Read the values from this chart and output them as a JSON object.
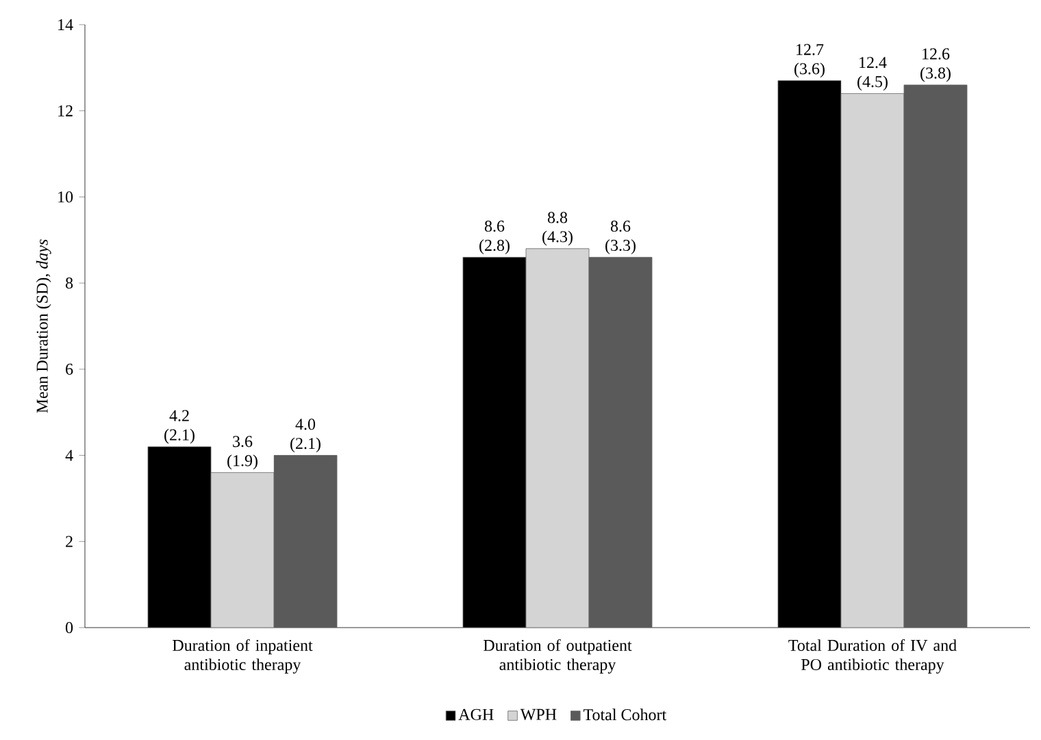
{
  "chart_data": {
    "type": "bar",
    "ylabel": "Mean Duration (SD), *days*",
    "categories": [
      "Duration of inpatient antibiotic therapy",
      "Duration of outpatient antibiotic therapy",
      "Total Duration of IV and PO antibiotic therapy"
    ],
    "series": [
      {
        "name": "AGH",
        "color": "#000000",
        "values": [
          4.2,
          8.6,
          12.7
        ],
        "value_labels": [
          "4.2 (2.1)",
          "8.6 (2.8)",
          "12.7 (3.6)"
        ]
      },
      {
        "name": "WPH",
        "color": "#d4d4d4",
        "values": [
          3.6,
          8.8,
          12.4
        ],
        "value_labels": [
          "3.6 (1.9)",
          "8.8 (4.3)",
          "12.4 (4.5)"
        ]
      },
      {
        "name": "Total Cohort",
        "color": "#5a5a5a",
        "values": [
          4.0,
          8.6,
          12.6
        ],
        "value_labels": [
          "4.0 (2.1)",
          "8.6 (3.3)",
          "12.6 (3.8)"
        ]
      }
    ],
    "ylim": [
      0,
      14
    ],
    "yticks": [
      0,
      2,
      4,
      6,
      8,
      10,
      12,
      14
    ],
    "legend": "bottom"
  }
}
